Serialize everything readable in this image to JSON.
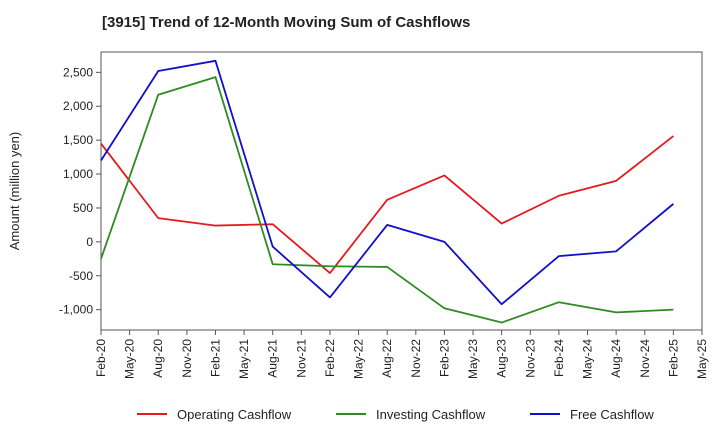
{
  "chart_data": {
    "type": "line",
    "title": "[3915]  Trend of 12-Month Moving Sum of Cashflows",
    "ylabel": "Amount (million yen)",
    "xlabel": "",
    "x": [
      "Feb-20",
      "May-20",
      "Aug-20",
      "Nov-20",
      "Feb-21",
      "May-21",
      "Aug-21",
      "Nov-21",
      "Feb-22",
      "May-22",
      "Aug-22",
      "Nov-22",
      "Feb-23",
      "May-23",
      "Aug-23",
      "Nov-23",
      "Feb-24",
      "May-24",
      "Aug-24",
      "Nov-24",
      "Feb-25",
      "May-25"
    ],
    "ylim": [
      -1300,
      2800
    ],
    "yticks": [
      -1000,
      -500,
      0,
      500,
      1000,
      1500,
      2000,
      2500
    ],
    "ytick_labels": [
      "-1,000",
      "-500",
      "0",
      "500",
      "1,000",
      "1,500",
      "2,000",
      "2,500"
    ],
    "grid": true,
    "legend_position": "bottom",
    "series": [
      {
        "name": "Operating Cashflow",
        "color": "#e41a1c",
        "points": [
          [
            "Feb-20",
            1450
          ],
          [
            "Aug-20",
            350
          ],
          [
            "Feb-21",
            240
          ],
          [
            "Aug-21",
            260
          ],
          [
            "Feb-22",
            -460
          ],
          [
            "Aug-22",
            620
          ],
          [
            "Feb-23",
            980
          ],
          [
            "Aug-23",
            270
          ],
          [
            "Feb-24",
            680
          ],
          [
            "Aug-24",
            900
          ],
          [
            "Feb-25",
            1560
          ]
        ]
      },
      {
        "name": "Investing Cashflow",
        "color": "#2e8b22",
        "points": [
          [
            "Feb-20",
            -250
          ],
          [
            "Aug-20",
            2170
          ],
          [
            "Feb-21",
            2430
          ],
          [
            "Aug-21",
            -330
          ],
          [
            "Feb-22",
            -360
          ],
          [
            "Aug-22",
            -370
          ],
          [
            "Feb-23",
            -980
          ],
          [
            "Aug-23",
            -1190
          ],
          [
            "Feb-24",
            -890
          ],
          [
            "Aug-24",
            -1040
          ],
          [
            "Feb-25",
            -1000
          ]
        ]
      },
      {
        "name": "Free Cashflow",
        "color": "#1010cc",
        "points": [
          [
            "Feb-20",
            1200
          ],
          [
            "Aug-20",
            2520
          ],
          [
            "Feb-21",
            2670
          ],
          [
            "Aug-21",
            -70
          ],
          [
            "Feb-22",
            -820
          ],
          [
            "Aug-22",
            250
          ],
          [
            "Feb-23",
            0
          ],
          [
            "Aug-23",
            -920
          ],
          [
            "Feb-24",
            -210
          ],
          [
            "Aug-24",
            -140
          ],
          [
            "Feb-25",
            560
          ]
        ]
      }
    ]
  }
}
